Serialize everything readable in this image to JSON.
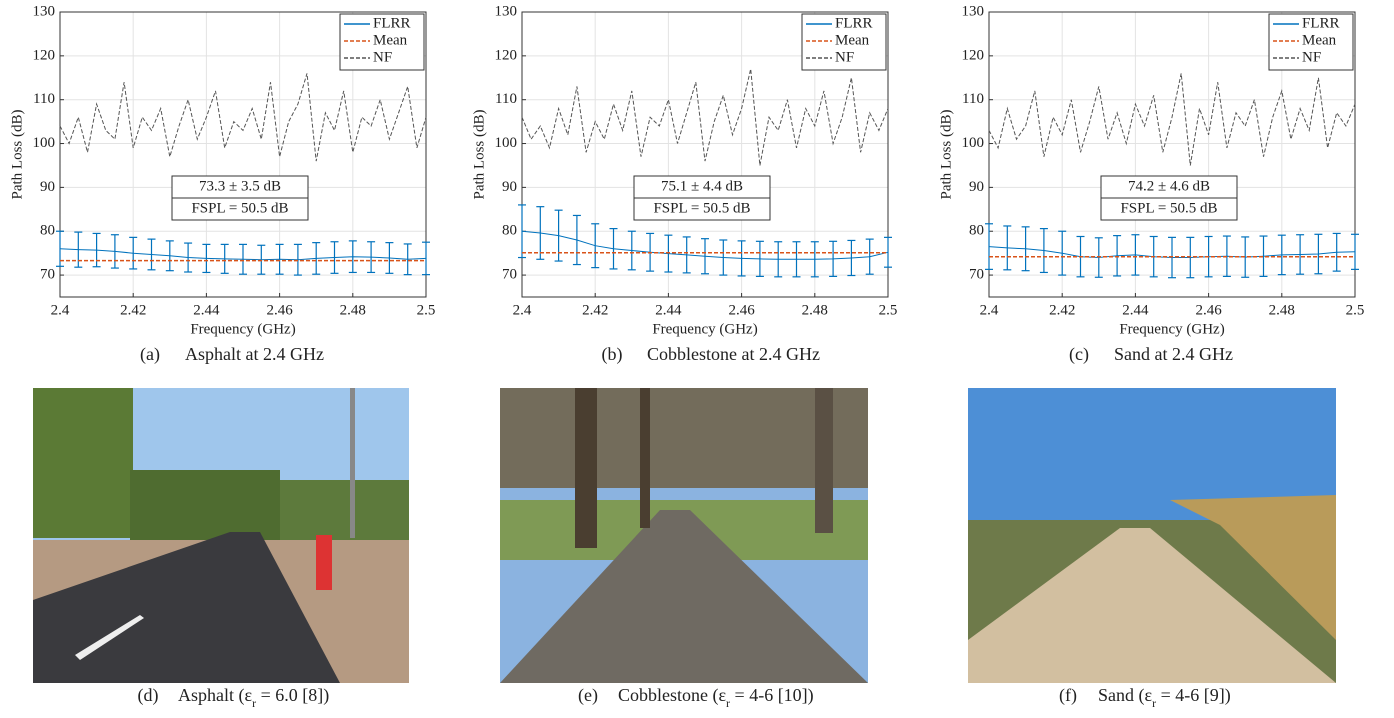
{
  "chart_data": [
    {
      "type": "line",
      "caption_label": "(a)",
      "caption": "Asphalt at 2.4 GHz",
      "xlabel": "Frequency (GHz)",
      "ylabel": "Path Loss (dB)",
      "annotations": [
        "73.3 ± 3.5 dB",
        "FSPL = 50.5 dB"
      ],
      "x": [
        2.4,
        2.405,
        2.41,
        2.415,
        2.42,
        2.425,
        2.43,
        2.435,
        2.44,
        2.445,
        2.45,
        2.455,
        2.46,
        2.465,
        2.47,
        2.475,
        2.48,
        2.485,
        2.49,
        2.495,
        2.5
      ],
      "series": [
        {
          "name": "FLRR",
          "color": "#0072bd",
          "values": [
            76,
            75.8,
            75.7,
            75.4,
            75,
            74.7,
            74.4,
            74,
            73.8,
            73.7,
            73.6,
            73.5,
            73.6,
            73.5,
            73.8,
            74,
            74.2,
            74.1,
            73.9,
            73.6,
            73.8
          ],
          "errors": [
            4,
            4,
            3.8,
            3.8,
            3.6,
            3.5,
            3.4,
            3.3,
            3.2,
            3.3,
            3.4,
            3.3,
            3.4,
            3.5,
            3.6,
            3.6,
            3.6,
            3.5,
            3.5,
            3.5,
            3.7
          ]
        },
        {
          "name": "Mean",
          "color": "#d95319",
          "style": "dashed",
          "values": [
            73.3,
            73.3,
            73.3,
            73.3,
            73.3,
            73.3,
            73.3,
            73.3,
            73.3,
            73.3,
            73.3,
            73.3,
            73.3,
            73.3,
            73.3,
            73.3,
            73.3,
            73.3,
            73.3,
            73.3,
            73.3
          ]
        },
        {
          "name": "NF",
          "color": "#555555",
          "style": "dashed",
          "x": [
            2.4,
            2.4025,
            2.405,
            2.4075,
            2.41,
            2.4125,
            2.415,
            2.4175,
            2.42,
            2.4225,
            2.425,
            2.4275,
            2.43,
            2.4325,
            2.435,
            2.4375,
            2.44,
            2.4425,
            2.445,
            2.4475,
            2.45,
            2.4525,
            2.455,
            2.4575,
            2.46,
            2.4625,
            2.465,
            2.4675,
            2.47,
            2.4725,
            2.475,
            2.4775,
            2.48,
            2.4825,
            2.485,
            2.4875,
            2.49,
            2.4925,
            2.495,
            2.4975,
            2.5
          ],
          "values": [
            104,
            100,
            106,
            98,
            109,
            103,
            101,
            114,
            99,
            106,
            103,
            108,
            97,
            104,
            110,
            101,
            106,
            112,
            99,
            105,
            103,
            108,
            101,
            114,
            97,
            105,
            109,
            116,
            96,
            107,
            103,
            112,
            98,
            106,
            104,
            110,
            101,
            107,
            113,
            99,
            106
          ]
        }
      ],
      "xlim": [
        2.4,
        2.5
      ],
      "ylim": [
        65,
        130
      ],
      "xticks": [
        2.4,
        2.42,
        2.44,
        2.46,
        2.48,
        2.5
      ],
      "yticks": [
        70,
        80,
        90,
        100,
        110,
        120,
        130
      ],
      "grid": true,
      "legend": "upper right"
    },
    {
      "type": "line",
      "caption_label": "(b)",
      "caption": "Cobblestone at 2.4 GHz",
      "xlabel": "Frequency (GHz)",
      "ylabel": "Path Loss (dB)",
      "annotations": [
        "75.1 ± 4.4 dB",
        "FSPL = 50.5 dB"
      ],
      "x": [
        2.4,
        2.405,
        2.41,
        2.415,
        2.42,
        2.425,
        2.43,
        2.435,
        2.44,
        2.445,
        2.45,
        2.455,
        2.46,
        2.465,
        2.47,
        2.475,
        2.48,
        2.485,
        2.49,
        2.495,
        2.5
      ],
      "series": [
        {
          "name": "FLRR",
          "color": "#0072bd",
          "values": [
            80,
            79.6,
            79,
            78,
            76.7,
            76,
            75.6,
            75.2,
            74.9,
            74.6,
            74.3,
            74,
            73.8,
            73.7,
            73.6,
            73.6,
            73.6,
            73.7,
            73.9,
            74.2,
            75.2
          ],
          "errors": [
            6,
            6,
            5.8,
            5.6,
            5,
            4.6,
            4.4,
            4.3,
            4.2,
            4.1,
            4,
            4,
            4,
            4,
            4,
            4,
            4,
            4,
            4,
            4,
            3.4
          ]
        },
        {
          "name": "Mean",
          "color": "#d95319",
          "style": "dashed",
          "values": [
            75.1,
            75.1,
            75.1,
            75.1,
            75.1,
            75.1,
            75.1,
            75.1,
            75.1,
            75.1,
            75.1,
            75.1,
            75.1,
            75.1,
            75.1,
            75.1,
            75.1,
            75.1,
            75.1,
            75.1,
            75.1
          ]
        },
        {
          "name": "NF",
          "color": "#555555",
          "style": "dashed",
          "x": [
            2.4,
            2.4025,
            2.405,
            2.4075,
            2.41,
            2.4125,
            2.415,
            2.4175,
            2.42,
            2.4225,
            2.425,
            2.4275,
            2.43,
            2.4325,
            2.435,
            2.4375,
            2.44,
            2.4425,
            2.445,
            2.4475,
            2.45,
            2.4525,
            2.455,
            2.4575,
            2.46,
            2.4625,
            2.465,
            2.4675,
            2.47,
            2.4725,
            2.475,
            2.4775,
            2.48,
            2.4825,
            2.485,
            2.4875,
            2.49,
            2.4925,
            2.495,
            2.4975,
            2.5
          ],
          "values": [
            106,
            101,
            104,
            99,
            108,
            102,
            113,
            98,
            105,
            101,
            109,
            103,
            112,
            97,
            106,
            104,
            110,
            100,
            107,
            114,
            96,
            105,
            111,
            102,
            108,
            117,
            95,
            106,
            103,
            110,
            99,
            108,
            104,
            112,
            100,
            106,
            115,
            98,
            107,
            103,
            108
          ]
        }
      ],
      "xlim": [
        2.4,
        2.5
      ],
      "ylim": [
        65,
        130
      ],
      "xticks": [
        2.4,
        2.42,
        2.44,
        2.46,
        2.48,
        2.5
      ],
      "yticks": [
        70,
        80,
        90,
        100,
        110,
        120,
        130
      ],
      "grid": true,
      "legend": "upper right"
    },
    {
      "type": "line",
      "caption_label": "(c)",
      "caption": "Sand at 2.4 GHz",
      "xlabel": "Frequency (GHz)",
      "ylabel": "Path Loss (dB)",
      "annotations": [
        "74.2 ± 4.6 dB",
        "FSPL = 50.5 dB"
      ],
      "x": [
        2.4,
        2.405,
        2.41,
        2.415,
        2.42,
        2.425,
        2.43,
        2.435,
        2.44,
        2.445,
        2.45,
        2.455,
        2.46,
        2.465,
        2.47,
        2.475,
        2.48,
        2.485,
        2.49,
        2.495,
        2.5
      ],
      "series": [
        {
          "name": "FLRR",
          "color": "#0072bd",
          "values": [
            76.5,
            76.2,
            76,
            75.6,
            75,
            74.2,
            74,
            74.4,
            74.6,
            74.2,
            74,
            74,
            74.2,
            74.3,
            74.1,
            74.3,
            74.6,
            74.7,
            74.8,
            75.2,
            75.3
          ],
          "errors": [
            5.2,
            5,
            5,
            5,
            5,
            4.6,
            4.5,
            4.6,
            4.6,
            4.6,
            4.6,
            4.6,
            4.6,
            4.6,
            4.6,
            4.6,
            4.5,
            4.5,
            4.5,
            4.3,
            4
          ]
        },
        {
          "name": "Mean",
          "color": "#d95319",
          "style": "dashed",
          "values": [
            74.2,
            74.2,
            74.2,
            74.2,
            74.2,
            74.2,
            74.2,
            74.2,
            74.2,
            74.2,
            74.2,
            74.2,
            74.2,
            74.2,
            74.2,
            74.2,
            74.2,
            74.2,
            74.2,
            74.2,
            74.2
          ]
        },
        {
          "name": "NF",
          "color": "#555555",
          "style": "dashed",
          "x": [
            2.4,
            2.4025,
            2.405,
            2.4075,
            2.41,
            2.4125,
            2.415,
            2.4175,
            2.42,
            2.4225,
            2.425,
            2.4275,
            2.43,
            2.4325,
            2.435,
            2.4375,
            2.44,
            2.4425,
            2.445,
            2.4475,
            2.45,
            2.4525,
            2.455,
            2.4575,
            2.46,
            2.4625,
            2.465,
            2.4675,
            2.47,
            2.4725,
            2.475,
            2.4775,
            2.48,
            2.4825,
            2.485,
            2.4875,
            2.49,
            2.4925,
            2.495,
            2.4975,
            2.5
          ],
          "values": [
            103,
            99,
            108,
            101,
            104,
            112,
            97,
            106,
            102,
            110,
            98,
            105,
            113,
            101,
            107,
            100,
            109,
            104,
            111,
            98,
            106,
            116,
            95,
            108,
            102,
            114,
            99,
            107,
            104,
            110,
            97,
            106,
            112,
            101,
            108,
            103,
            115,
            99,
            107,
            104,
            109
          ]
        }
      ],
      "xlim": [
        2.4,
        2.5
      ],
      "ylim": [
        65,
        130
      ],
      "xticks": [
        2.4,
        2.42,
        2.44,
        2.46,
        2.48,
        2.5
      ],
      "yticks": [
        70,
        80,
        90,
        100,
        110,
        120,
        130
      ],
      "grid": true,
      "legend": "upper right"
    }
  ],
  "photos": [
    {
      "caption_label": "(d)",
      "prefix": "Asphalt (ε",
      "sub": "r",
      "suffix": " = 6.0 [8])"
    },
    {
      "caption_label": "(e)",
      "prefix": "Cobblestone (ε",
      "sub": "r",
      "suffix": " = 4-6 [10])"
    },
    {
      "caption_label": "(f)",
      "prefix": "Sand (ε",
      "sub": "r",
      "suffix": " = 4-6 [9])"
    }
  ]
}
